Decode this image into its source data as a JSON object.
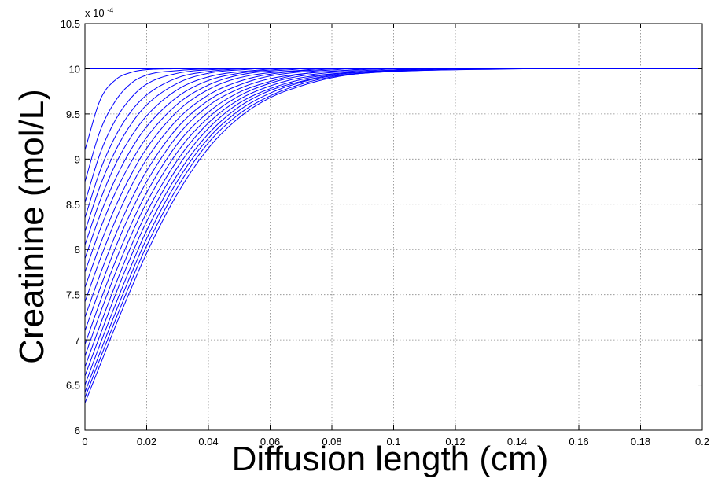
{
  "chart_data": {
    "type": "line",
    "title": "",
    "xlabel": "Diffusion length (cm)",
    "ylabel": "Creatinine (mol/L)",
    "y_exponent_label": "x 10",
    "y_exponent_power": "-4",
    "xlim": [
      0,
      0.2
    ],
    "ylim": [
      6,
      10.5
    ],
    "x_ticks": [
      0,
      0.02,
      0.04,
      0.06,
      0.08,
      0.1,
      0.12,
      0.14,
      0.16,
      0.18,
      0.2
    ],
    "x_tick_labels": [
      "0",
      "0.02",
      "0.04",
      "0.06",
      "0.08",
      "0.1",
      "0.12",
      "0.14",
      "0.16",
      "0.18",
      "0.2"
    ],
    "y_ticks": [
      6,
      6.5,
      7,
      7.5,
      8,
      8.5,
      9,
      9.5,
      10,
      10.5
    ],
    "y_tick_labels": [
      "6",
      "6.5",
      "7",
      "7.5",
      "8",
      "8.5",
      "9",
      "9.5",
      "10",
      "10.5"
    ],
    "grid": true,
    "line_color": "#0000ff",
    "bulk_level": 10,
    "series": [
      {
        "values": [
          [
            0,
            10
          ],
          [
            0.2,
            10
          ]
        ]
      },
      {
        "values": [
          [
            0,
            9.1
          ],
          [
            0.005,
            9.66
          ],
          [
            0.01,
            9.88
          ],
          [
            0.015,
            9.96
          ],
          [
            0.02,
            9.99
          ],
          [
            0.03,
            10
          ]
        ]
      },
      {
        "values": [
          [
            0,
            8.75
          ],
          [
            0.005,
            9.32
          ],
          [
            0.01,
            9.65
          ],
          [
            0.015,
            9.84
          ],
          [
            0.02,
            9.93
          ],
          [
            0.03,
            9.98
          ],
          [
            0.04,
            10
          ]
        ]
      },
      {
        "values": [
          [
            0,
            8.52
          ],
          [
            0.005,
            9.07
          ],
          [
            0.01,
            9.44
          ],
          [
            0.015,
            9.68
          ],
          [
            0.02,
            9.83
          ],
          [
            0.03,
            9.95
          ],
          [
            0.045,
            10
          ]
        ]
      },
      {
        "values": [
          [
            0,
            8.35
          ],
          [
            0.005,
            8.88
          ],
          [
            0.01,
            9.26
          ],
          [
            0.015,
            9.53
          ],
          [
            0.02,
            9.71
          ],
          [
            0.03,
            9.9
          ],
          [
            0.04,
            9.97
          ],
          [
            0.05,
            10
          ]
        ]
      },
      {
        "values": [
          [
            0,
            8.2
          ],
          [
            0.005,
            8.71
          ],
          [
            0.01,
            9.1
          ],
          [
            0.015,
            9.39
          ],
          [
            0.02,
            9.6
          ],
          [
            0.03,
            9.84
          ],
          [
            0.04,
            9.95
          ],
          [
            0.055,
            10
          ]
        ]
      },
      {
        "values": [
          [
            0,
            8.05
          ],
          [
            0.005,
            8.55
          ],
          [
            0.01,
            8.95
          ],
          [
            0.015,
            9.25
          ],
          [
            0.02,
            9.48
          ],
          [
            0.03,
            9.77
          ],
          [
            0.04,
            9.91
          ],
          [
            0.06,
            10
          ]
        ]
      },
      {
        "values": [
          [
            0,
            7.9
          ],
          [
            0.005,
            8.39
          ],
          [
            0.01,
            8.79
          ],
          [
            0.015,
            9.11
          ],
          [
            0.02,
            9.36
          ],
          [
            0.03,
            9.69
          ],
          [
            0.04,
            9.87
          ],
          [
            0.05,
            9.95
          ],
          [
            0.065,
            10
          ]
        ]
      },
      {
        "values": [
          [
            0,
            7.75
          ],
          [
            0.005,
            8.23
          ],
          [
            0.01,
            8.64
          ],
          [
            0.015,
            8.97
          ],
          [
            0.02,
            9.24
          ],
          [
            0.03,
            9.61
          ],
          [
            0.04,
            9.82
          ],
          [
            0.05,
            9.93
          ],
          [
            0.07,
            10
          ]
        ]
      },
      {
        "values": [
          [
            0,
            7.58
          ],
          [
            0.005,
            8.06
          ],
          [
            0.01,
            8.48
          ],
          [
            0.015,
            8.83
          ],
          [
            0.02,
            9.12
          ],
          [
            0.03,
            9.53
          ],
          [
            0.04,
            9.77
          ],
          [
            0.05,
            9.9
          ],
          [
            0.075,
            10
          ]
        ]
      },
      {
        "values": [
          [
            0,
            7.42
          ],
          [
            0.005,
            7.9
          ],
          [
            0.01,
            8.33
          ],
          [
            0.015,
            8.7
          ],
          [
            0.02,
            9.0
          ],
          [
            0.03,
            9.44
          ],
          [
            0.04,
            9.71
          ],
          [
            0.05,
            9.86
          ],
          [
            0.06,
            9.94
          ],
          [
            0.08,
            10
          ]
        ]
      },
      {
        "values": [
          [
            0,
            7.25
          ],
          [
            0.005,
            7.73
          ],
          [
            0.01,
            8.17
          ],
          [
            0.015,
            8.55
          ],
          [
            0.02,
            8.87
          ],
          [
            0.03,
            9.35
          ],
          [
            0.04,
            9.65
          ],
          [
            0.05,
            9.82
          ],
          [
            0.06,
            9.92
          ],
          [
            0.085,
            10
          ]
        ]
      },
      {
        "values": [
          [
            0,
            7.1
          ],
          [
            0.005,
            7.58
          ],
          [
            0.01,
            8.03
          ],
          [
            0.015,
            8.42
          ],
          [
            0.02,
            8.75
          ],
          [
            0.03,
            9.26
          ],
          [
            0.04,
            9.59
          ],
          [
            0.05,
            9.78
          ],
          [
            0.06,
            9.89
          ],
          [
            0.09,
            10
          ]
        ]
      },
      {
        "values": [
          [
            0,
            6.95
          ],
          [
            0.005,
            7.43
          ],
          [
            0.01,
            7.88
          ],
          [
            0.015,
            8.28
          ],
          [
            0.02,
            8.63
          ],
          [
            0.03,
            9.17
          ],
          [
            0.04,
            9.52
          ],
          [
            0.05,
            9.74
          ],
          [
            0.06,
            9.86
          ],
          [
            0.07,
            9.94
          ],
          [
            0.095,
            10
          ]
        ]
      },
      {
        "values": [
          [
            0,
            6.82
          ],
          [
            0.005,
            7.3
          ],
          [
            0.01,
            7.75
          ],
          [
            0.015,
            8.16
          ],
          [
            0.02,
            8.52
          ],
          [
            0.03,
            9.08
          ],
          [
            0.04,
            9.46
          ],
          [
            0.05,
            9.7
          ],
          [
            0.06,
            9.84
          ],
          [
            0.07,
            9.92
          ],
          [
            0.1,
            10
          ]
        ]
      },
      {
        "values": [
          [
            0,
            6.7
          ],
          [
            0.005,
            7.17
          ],
          [
            0.01,
            7.62
          ],
          [
            0.015,
            8.04
          ],
          [
            0.02,
            8.41
          ],
          [
            0.03,
            8.99
          ],
          [
            0.04,
            9.4
          ],
          [
            0.05,
            9.66
          ],
          [
            0.06,
            9.81
          ],
          [
            0.07,
            9.9
          ],
          [
            0.105,
            10
          ]
        ]
      },
      {
        "values": [
          [
            0,
            6.6
          ],
          [
            0.005,
            7.06
          ],
          [
            0.01,
            7.51
          ],
          [
            0.015,
            7.93
          ],
          [
            0.02,
            8.31
          ],
          [
            0.03,
            8.91
          ],
          [
            0.04,
            9.34
          ],
          [
            0.05,
            9.62
          ],
          [
            0.06,
            9.78
          ],
          [
            0.07,
            9.88
          ],
          [
            0.08,
            9.94
          ],
          [
            0.11,
            10
          ]
        ]
      },
      {
        "values": [
          [
            0,
            6.5
          ],
          [
            0.005,
            6.96
          ],
          [
            0.01,
            7.4
          ],
          [
            0.015,
            7.82
          ],
          [
            0.02,
            8.21
          ],
          [
            0.03,
            8.83
          ],
          [
            0.04,
            9.28
          ],
          [
            0.05,
            9.58
          ],
          [
            0.06,
            9.76
          ],
          [
            0.07,
            9.86
          ],
          [
            0.08,
            9.93
          ],
          [
            0.115,
            10
          ]
        ]
      },
      {
        "values": [
          [
            0,
            6.42
          ],
          [
            0.005,
            6.87
          ],
          [
            0.01,
            7.31
          ],
          [
            0.015,
            7.73
          ],
          [
            0.02,
            8.12
          ],
          [
            0.03,
            8.76
          ],
          [
            0.04,
            9.23
          ],
          [
            0.05,
            9.54
          ],
          [
            0.06,
            9.73
          ],
          [
            0.07,
            9.85
          ],
          [
            0.08,
            9.92
          ],
          [
            0.12,
            10
          ]
        ]
      },
      {
        "values": [
          [
            0,
            6.36
          ],
          [
            0.005,
            6.8
          ],
          [
            0.01,
            7.23
          ],
          [
            0.015,
            7.65
          ],
          [
            0.02,
            8.04
          ],
          [
            0.03,
            8.69
          ],
          [
            0.04,
            9.18
          ],
          [
            0.05,
            9.5
          ],
          [
            0.06,
            9.7
          ],
          [
            0.07,
            9.83
          ],
          [
            0.08,
            9.91
          ],
          [
            0.09,
            9.95
          ],
          [
            0.13,
            10
          ]
        ]
      },
      {
        "values": [
          [
            0,
            6.3
          ],
          [
            0.005,
            6.73
          ],
          [
            0.01,
            7.16
          ],
          [
            0.015,
            7.57
          ],
          [
            0.02,
            7.96
          ],
          [
            0.03,
            8.62
          ],
          [
            0.04,
            9.12
          ],
          [
            0.05,
            9.46
          ],
          [
            0.06,
            9.68
          ],
          [
            0.07,
            9.81
          ],
          [
            0.08,
            9.9
          ],
          [
            0.09,
            9.95
          ],
          [
            0.142,
            10
          ]
        ]
      }
    ]
  }
}
